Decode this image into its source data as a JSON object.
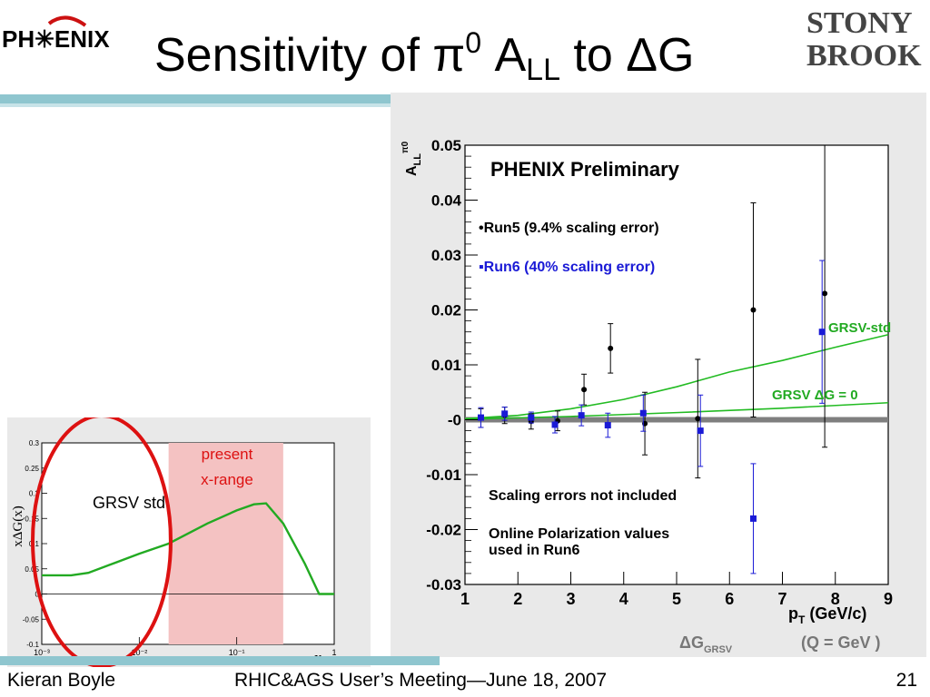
{
  "slide": {
    "title_prefix": "Sensitivity of π",
    "title_sup": "0",
    "title_A": " A",
    "title_sub": "LL",
    "title_suffix": " to ΔG",
    "logo_left_text": "PH✳ENIX",
    "logo_right_line1": "STONY",
    "logo_right_line2": "BROOK"
  },
  "footer": {
    "author": "Kieran Boyle",
    "meeting": "RHIC&AGS User’s Meeting—June 18, 2007",
    "page_number": "21"
  },
  "chart_data": [
    {
      "type": "scatter",
      "title": "PHENIX Preliminary",
      "xlabel": "p",
      "xlabel_sub": "T",
      "xlabel_unit": " (GeV/c)",
      "ylabel": "A",
      "ylabel_sub": "LL",
      "ylabel_sup": "π0",
      "xlim": [
        1,
        9
      ],
      "ylim": [
        -0.03,
        0.05
      ],
      "xticks": [
        1,
        2,
        3,
        4,
        5,
        6,
        7,
        8,
        9
      ],
      "yticks": [
        -0.03,
        -0.02,
        -0.01,
        0,
        0.01,
        0.02,
        0.03,
        0.04,
        0.05
      ],
      "ytick_labels": [
        "-0.03",
        "-0.02",
        "-0.01",
        "-0",
        "0.01",
        "0.02",
        "0.03",
        "0.04",
        "0.05"
      ],
      "series": [
        {
          "name": "•Run5 (9.4% scaling error)",
          "marker": "circle",
          "color": "#000000",
          "x": [
            1.3,
            1.75,
            2.25,
            2.75,
            3.25,
            3.75,
            4.4,
            5.4,
            6.45,
            7.8
          ],
          "y": [
            0.0003,
            0.0008,
            -0.0003,
            -0.0002,
            0.0055,
            0.013,
            -0.0007,
            0.0002,
            0.02,
            0.023
          ],
          "err": [
            0.0017,
            0.0015,
            0.0014,
            0.0018,
            0.0028,
            0.0045,
            0.0057,
            0.0108,
            0.0195,
            0.028
          ]
        },
        {
          "name": "▪Run6 (40% scaling error)",
          "marker": "square",
          "color": "#1a1ad6",
          "x": [
            1.3,
            1.75,
            2.25,
            2.7,
            3.2,
            3.7,
            4.37,
            5.45,
            6.45,
            7.75
          ],
          "y": [
            0.0004,
            0.0011,
            0.0004,
            -0.0009,
            0.0008,
            -0.001,
            0.0012,
            -0.002,
            -0.018,
            0.016
          ],
          "err": [
            0.0018,
            0.0012,
            0.001,
            0.0015,
            0.0019,
            0.0022,
            0.0033,
            0.0065,
            0.01,
            0.013
          ]
        }
      ],
      "curves": [
        {
          "name": "GRSV-std",
          "color": "#22bb22",
          "x": [
            1,
            2,
            3,
            4,
            5,
            6,
            7,
            8,
            9
          ],
          "y": [
            0.0002,
            0.0008,
            0.002,
            0.0037,
            0.006,
            0.0087,
            0.0108,
            0.0132,
            0.0155
          ]
        },
        {
          "name": "GRSV ΔG = 0",
          "color": "#22bb22",
          "x": [
            1,
            3,
            5,
            7,
            9
          ],
          "y": [
            0.0001,
            0.0006,
            0.0013,
            0.0021,
            0.0031
          ]
        }
      ],
      "annotations": [
        "Scaling errors not included",
        "Online Polarization values",
        "used in Run6"
      ],
      "partial_label": "ΔG",
      "partial_label_sub": "GRSV",
      "partial_label_right": "(Q  =  GeV )"
    },
    {
      "type": "line",
      "xlabel": "x",
      "ylabel": "xΔG(x)",
      "xscale": "log",
      "xlim": [
        0.001,
        1
      ],
      "ylim": [
        -0.1,
        0.3
      ],
      "xtick_labels": [
        "10⁻³",
        "10⁻²",
        "10⁻¹",
        "1"
      ],
      "ytick_labels": [
        "-0.1",
        "-0.05",
        "0",
        "0.05",
        "0.1",
        "0.15",
        "0.2",
        "0.25",
        "0.3"
      ],
      "series": [
        {
          "name": "GRSV std",
          "color": "#22aa22",
          "x": [
            0.001,
            0.002,
            0.003,
            0.005,
            0.01,
            0.02,
            0.05,
            0.1,
            0.15,
            0.2,
            0.3,
            0.5,
            0.7,
            1.0
          ],
          "y": [
            0.037,
            0.037,
            0.042,
            0.058,
            0.08,
            0.1,
            0.14,
            0.166,
            0.178,
            0.18,
            0.14,
            0.06,
            0.0,
            0.0
          ]
        }
      ],
      "highlight_range": [
        0.02,
        0.3
      ],
      "highlight_label_line1": "present",
      "highlight_label_line2": "x-range"
    }
  ]
}
